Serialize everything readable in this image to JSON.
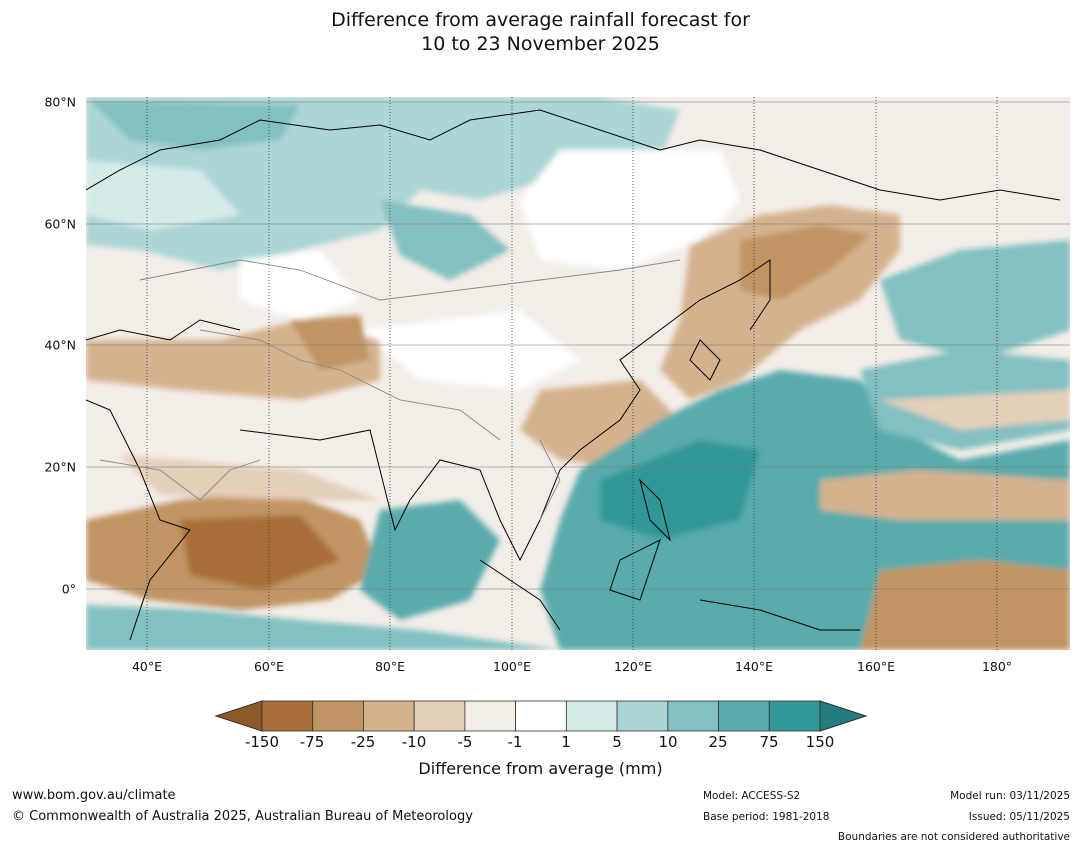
{
  "title": {
    "line1": "Difference from average rainfall forecast for",
    "line2": "10 to 23 November 2025"
  },
  "map": {
    "lat_labels": [
      "80°N",
      "60°N",
      "40°N",
      "20°N",
      "0°"
    ],
    "lat_values": [
      80,
      60,
      40,
      20,
      0
    ],
    "lon_labels": [
      "40°E",
      "60°E",
      "80°E",
      "100°E",
      "120°E",
      "140°E",
      "160°E",
      "180°"
    ],
    "lon_values": [
      40,
      60,
      80,
      100,
      120,
      140,
      160,
      180
    ],
    "extent": {
      "lon_min": 30,
      "lon_max": 192,
      "lat_min": -10,
      "lat_max": 81
    }
  },
  "colorbar": {
    "ticks": [
      "-150",
      "-75",
      "-25",
      "-10",
      "-5",
      "-1",
      "1",
      "5",
      "10",
      "25",
      "75",
      "150"
    ],
    "colors": [
      "#a87038",
      "#c19464",
      "#d4b28e",
      "#e4cfb9",
      "#f3ede8",
      "#ffffff",
      "#d5ebea",
      "#acd5d5",
      "#82c0c1",
      "#5aabac",
      "#329797"
    ],
    "under_color": "#8f5a29",
    "over_color": "#227e7e",
    "label": "Difference from average (mm)"
  },
  "footer": {
    "website": "www.bom.gov.au/climate",
    "copyright": "© Commonwealth of Australia 2025, Australian Bureau of Meteorology",
    "model": "Model: ACCESS-S2",
    "base_period": "Base period: 1981-2018",
    "model_run": "Model run: 03/11/2025",
    "issued": "Issued: 05/11/2025",
    "disclaimer": "Boundaries are not considered authoritative"
  }
}
